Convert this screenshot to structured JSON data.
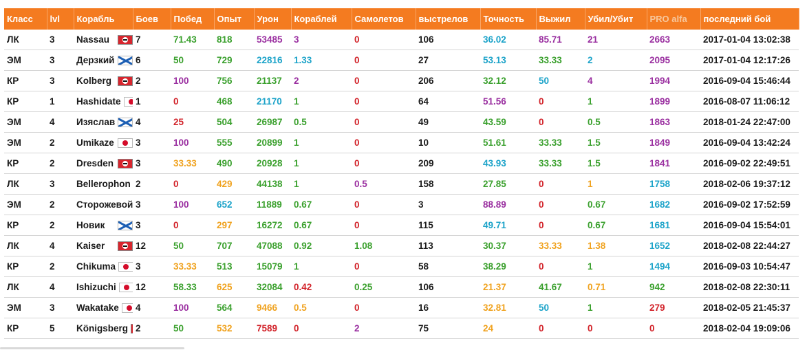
{
  "headers": [
    "Класс",
    "lvl",
    "Корабль",
    "Боев",
    "Побед",
    "Опыт",
    "Урон",
    "Кораблей",
    "Самолетов",
    "выстрелов",
    "Точность",
    "Выжил",
    "Убил/Убит",
    "PRO alfa",
    "последний бой"
  ],
  "header_colors": {
    "PRO alfa": "#f7c89e"
  },
  "rows": [
    {
      "cls": "ЛК",
      "lvl": "3",
      "ship": "Nassau",
      "flag": "de",
      "battles": "7",
      "wins": {
        "v": "71.43",
        "c": "#3aa02d"
      },
      "exp": {
        "v": "818",
        "c": "#3aa02d"
      },
      "dmg": {
        "v": "53485",
        "c": "#9a2fa0"
      },
      "ships": {
        "v": "3",
        "c": "#9a2fa0"
      },
      "planes": {
        "v": "0",
        "c": "#d2232a"
      },
      "shots": "106",
      "acc": {
        "v": "36.02",
        "c": "#1ca3c9"
      },
      "surv": {
        "v": "85.71",
        "c": "#9a2fa0"
      },
      "kd": {
        "v": "21",
        "c": "#9a2fa0"
      },
      "pro": {
        "v": "2663",
        "c": "#9a2fa0"
      },
      "last": "2017-01-04 13:02:38"
    },
    {
      "cls": "ЭМ",
      "lvl": "3",
      "ship": "Дерзкий",
      "flag": "ru",
      "battles": "6",
      "wins": {
        "v": "50",
        "c": "#3aa02d"
      },
      "exp": {
        "v": "729",
        "c": "#3aa02d"
      },
      "dmg": {
        "v": "22816",
        "c": "#1ca3c9"
      },
      "ships": {
        "v": "1.33",
        "c": "#1ca3c9"
      },
      "planes": {
        "v": "0",
        "c": "#d2232a"
      },
      "shots": "27",
      "acc": {
        "v": "53.13",
        "c": "#1ca3c9"
      },
      "surv": {
        "v": "33.33",
        "c": "#3aa02d"
      },
      "kd": {
        "v": "2",
        "c": "#1ca3c9"
      },
      "pro": {
        "v": "2095",
        "c": "#9a2fa0"
      },
      "last": "2017-01-04 12:17:26"
    },
    {
      "cls": "КР",
      "lvl": "3",
      "ship": "Kolberg",
      "flag": "de",
      "battles": "2",
      "wins": {
        "v": "100",
        "c": "#9a2fa0"
      },
      "exp": {
        "v": "756",
        "c": "#3aa02d"
      },
      "dmg": {
        "v": "21137",
        "c": "#3aa02d"
      },
      "ships": {
        "v": "2",
        "c": "#9a2fa0"
      },
      "planes": {
        "v": "0",
        "c": "#d2232a"
      },
      "shots": "206",
      "acc": {
        "v": "32.12",
        "c": "#3aa02d"
      },
      "surv": {
        "v": "50",
        "c": "#1ca3c9"
      },
      "kd": {
        "v": "4",
        "c": "#9a2fa0"
      },
      "pro": {
        "v": "1994",
        "c": "#9a2fa0"
      },
      "last": "2016-09-04 15:46:44"
    },
    {
      "cls": "КР",
      "lvl": "1",
      "ship": "Hashidate",
      "flag": "jp",
      "battles": "1",
      "wins": {
        "v": "0",
        "c": "#d2232a"
      },
      "exp": {
        "v": "468",
        "c": "#3aa02d"
      },
      "dmg": {
        "v": "21170",
        "c": "#1ca3c9"
      },
      "ships": {
        "v": "1",
        "c": "#3aa02d"
      },
      "planes": {
        "v": "0",
        "c": "#d2232a"
      },
      "shots": "64",
      "acc": {
        "v": "51.56",
        "c": "#9a2fa0"
      },
      "surv": {
        "v": "0",
        "c": "#d2232a"
      },
      "kd": {
        "v": "1",
        "c": "#3aa02d"
      },
      "pro": {
        "v": "1899",
        "c": "#9a2fa0"
      },
      "last": "2016-08-07 11:06:12"
    },
    {
      "cls": "ЭМ",
      "lvl": "4",
      "ship": "Изяслав",
      "flag": "ru",
      "battles": "4",
      "wins": {
        "v": "25",
        "c": "#d2232a"
      },
      "exp": {
        "v": "504",
        "c": "#3aa02d"
      },
      "dmg": {
        "v": "26987",
        "c": "#3aa02d"
      },
      "ships": {
        "v": "0.5",
        "c": "#3aa02d"
      },
      "planes": {
        "v": "0",
        "c": "#d2232a"
      },
      "shots": "49",
      "acc": {
        "v": "43.59",
        "c": "#3aa02d"
      },
      "surv": {
        "v": "0",
        "c": "#d2232a"
      },
      "kd": {
        "v": "0.5",
        "c": "#3aa02d"
      },
      "pro": {
        "v": "1863",
        "c": "#9a2fa0"
      },
      "last": "2018-01-24 22:47:00"
    },
    {
      "cls": "ЭМ",
      "lvl": "2",
      "ship": "Umikaze",
      "flag": "jp",
      "battles": "3",
      "wins": {
        "v": "100",
        "c": "#9a2fa0"
      },
      "exp": {
        "v": "555",
        "c": "#3aa02d"
      },
      "dmg": {
        "v": "20899",
        "c": "#3aa02d"
      },
      "ships": {
        "v": "1",
        "c": "#3aa02d"
      },
      "planes": {
        "v": "0",
        "c": "#d2232a"
      },
      "shots": "10",
      "acc": {
        "v": "51.61",
        "c": "#3aa02d"
      },
      "surv": {
        "v": "33.33",
        "c": "#3aa02d"
      },
      "kd": {
        "v": "1.5",
        "c": "#3aa02d"
      },
      "pro": {
        "v": "1849",
        "c": "#9a2fa0"
      },
      "last": "2016-09-04 13:42:24"
    },
    {
      "cls": "КР",
      "lvl": "2",
      "ship": "Dresden",
      "flag": "de",
      "battles": "3",
      "wins": {
        "v": "33.33",
        "c": "#f0a21e"
      },
      "exp": {
        "v": "490",
        "c": "#3aa02d"
      },
      "dmg": {
        "v": "20928",
        "c": "#3aa02d"
      },
      "ships": {
        "v": "1",
        "c": "#3aa02d"
      },
      "planes": {
        "v": "0",
        "c": "#d2232a"
      },
      "shots": "209",
      "acc": {
        "v": "43.93",
        "c": "#1ca3c9"
      },
      "surv": {
        "v": "33.33",
        "c": "#3aa02d"
      },
      "kd": {
        "v": "1.5",
        "c": "#3aa02d"
      },
      "pro": {
        "v": "1841",
        "c": "#9a2fa0"
      },
      "last": "2016-09-02 22:49:51"
    },
    {
      "cls": "ЛК",
      "lvl": "3",
      "ship": "Bellerophon",
      "flag": "uk",
      "battles": "2",
      "wins": {
        "v": "0",
        "c": "#d2232a"
      },
      "exp": {
        "v": "429",
        "c": "#f0a21e"
      },
      "dmg": {
        "v": "44138",
        "c": "#3aa02d"
      },
      "ships": {
        "v": "1",
        "c": "#3aa02d"
      },
      "planes": {
        "v": "0.5",
        "c": "#9a2fa0"
      },
      "shots": "158",
      "acc": {
        "v": "27.85",
        "c": "#3aa02d"
      },
      "surv": {
        "v": "0",
        "c": "#d2232a"
      },
      "kd": {
        "v": "1",
        "c": "#f0a21e"
      },
      "pro": {
        "v": "1758",
        "c": "#1ca3c9"
      },
      "last": "2018-02-06 19:37:12"
    },
    {
      "cls": "ЭМ",
      "lvl": "2",
      "ship": "Сторожевой",
      "flag": "ru",
      "battles": "3",
      "wins": {
        "v": "100",
        "c": "#9a2fa0"
      },
      "exp": {
        "v": "652",
        "c": "#1ca3c9"
      },
      "dmg": {
        "v": "11889",
        "c": "#3aa02d"
      },
      "ships": {
        "v": "0.67",
        "c": "#3aa02d"
      },
      "planes": {
        "v": "0",
        "c": "#d2232a"
      },
      "shots": "3",
      "acc": {
        "v": "88.89",
        "c": "#9a2fa0"
      },
      "surv": {
        "v": "0",
        "c": "#d2232a"
      },
      "kd": {
        "v": "0.67",
        "c": "#3aa02d"
      },
      "pro": {
        "v": "1682",
        "c": "#1ca3c9"
      },
      "last": "2016-09-02 17:52:59"
    },
    {
      "cls": "КР",
      "lvl": "2",
      "ship": "Новик",
      "flag": "ru",
      "battles": "3",
      "wins": {
        "v": "0",
        "c": "#d2232a"
      },
      "exp": {
        "v": "297",
        "c": "#f0a21e"
      },
      "dmg": {
        "v": "16272",
        "c": "#3aa02d"
      },
      "ships": {
        "v": "0.67",
        "c": "#3aa02d"
      },
      "planes": {
        "v": "0",
        "c": "#d2232a"
      },
      "shots": "115",
      "acc": {
        "v": "49.71",
        "c": "#1ca3c9"
      },
      "surv": {
        "v": "0",
        "c": "#d2232a"
      },
      "kd": {
        "v": "0.67",
        "c": "#3aa02d"
      },
      "pro": {
        "v": "1681",
        "c": "#1ca3c9"
      },
      "last": "2016-09-04 15:54:01"
    },
    {
      "cls": "ЛК",
      "lvl": "4",
      "ship": "Kaiser",
      "flag": "de",
      "battles": "12",
      "wins": {
        "v": "50",
        "c": "#3aa02d"
      },
      "exp": {
        "v": "707",
        "c": "#3aa02d"
      },
      "dmg": {
        "v": "47088",
        "c": "#3aa02d"
      },
      "ships": {
        "v": "0.92",
        "c": "#3aa02d"
      },
      "planes": {
        "v": "1.08",
        "c": "#3aa02d"
      },
      "shots": "113",
      "acc": {
        "v": "30.37",
        "c": "#3aa02d"
      },
      "surv": {
        "v": "33.33",
        "c": "#f0a21e"
      },
      "kd": {
        "v": "1.38",
        "c": "#f0a21e"
      },
      "pro": {
        "v": "1652",
        "c": "#1ca3c9"
      },
      "last": "2018-02-08 22:44:27"
    },
    {
      "cls": "КР",
      "lvl": "2",
      "ship": "Chikuma",
      "flag": "jp",
      "battles": "3",
      "wins": {
        "v": "33.33",
        "c": "#f0a21e"
      },
      "exp": {
        "v": "513",
        "c": "#3aa02d"
      },
      "dmg": {
        "v": "15079",
        "c": "#3aa02d"
      },
      "ships": {
        "v": "1",
        "c": "#3aa02d"
      },
      "planes": {
        "v": "0",
        "c": "#d2232a"
      },
      "shots": "58",
      "acc": {
        "v": "38.29",
        "c": "#3aa02d"
      },
      "surv": {
        "v": "0",
        "c": "#d2232a"
      },
      "kd": {
        "v": "1",
        "c": "#3aa02d"
      },
      "pro": {
        "v": "1494",
        "c": "#1ca3c9"
      },
      "last": "2016-09-03 10:54:47"
    },
    {
      "cls": "ЛК",
      "lvl": "4",
      "ship": "Ishizuchi",
      "flag": "jp",
      "battles": "12",
      "wins": {
        "v": "58.33",
        "c": "#3aa02d"
      },
      "exp": {
        "v": "625",
        "c": "#f0a21e"
      },
      "dmg": {
        "v": "32084",
        "c": "#3aa02d"
      },
      "ships": {
        "v": "0.42",
        "c": "#d2232a"
      },
      "planes": {
        "v": "0.25",
        "c": "#3aa02d"
      },
      "shots": "106",
      "acc": {
        "v": "21.37",
        "c": "#f0a21e"
      },
      "surv": {
        "v": "41.67",
        "c": "#3aa02d"
      },
      "kd": {
        "v": "0.71",
        "c": "#f0a21e"
      },
      "pro": {
        "v": "942",
        "c": "#3aa02d"
      },
      "last": "2018-02-08 22:30:11"
    },
    {
      "cls": "ЭМ",
      "lvl": "3",
      "ship": "Wakatake",
      "flag": "jp",
      "battles": "4",
      "wins": {
        "v": "100",
        "c": "#9a2fa0"
      },
      "exp": {
        "v": "564",
        "c": "#3aa02d"
      },
      "dmg": {
        "v": "9466",
        "c": "#f0a21e"
      },
      "ships": {
        "v": "0.5",
        "c": "#f0a21e"
      },
      "planes": {
        "v": "0",
        "c": "#d2232a"
      },
      "shots": "16",
      "acc": {
        "v": "32.81",
        "c": "#f0a21e"
      },
      "surv": {
        "v": "50",
        "c": "#1ca3c9"
      },
      "kd": {
        "v": "1",
        "c": "#3aa02d"
      },
      "pro": {
        "v": "279",
        "c": "#d2232a"
      },
      "last": "2018-02-05 21:45:37"
    },
    {
      "cls": "КР",
      "lvl": "5",
      "ship": "Königsberg",
      "flag": "de",
      "battles": "2",
      "wins": {
        "v": "50",
        "c": "#3aa02d"
      },
      "exp": {
        "v": "532",
        "c": "#f0a21e"
      },
      "dmg": {
        "v": "7589",
        "c": "#d2232a"
      },
      "ships": {
        "v": "0",
        "c": "#d2232a"
      },
      "planes": {
        "v": "2",
        "c": "#9a2fa0"
      },
      "shots": "75",
      "acc": {
        "v": "24",
        "c": "#f0a21e"
      },
      "surv": {
        "v": "0",
        "c": "#d2232a"
      },
      "kd": {
        "v": "0",
        "c": "#d2232a"
      },
      "pro": {
        "v": "0",
        "c": "#d2232a"
      },
      "last": "2018-02-04 19:09:06"
    }
  ]
}
